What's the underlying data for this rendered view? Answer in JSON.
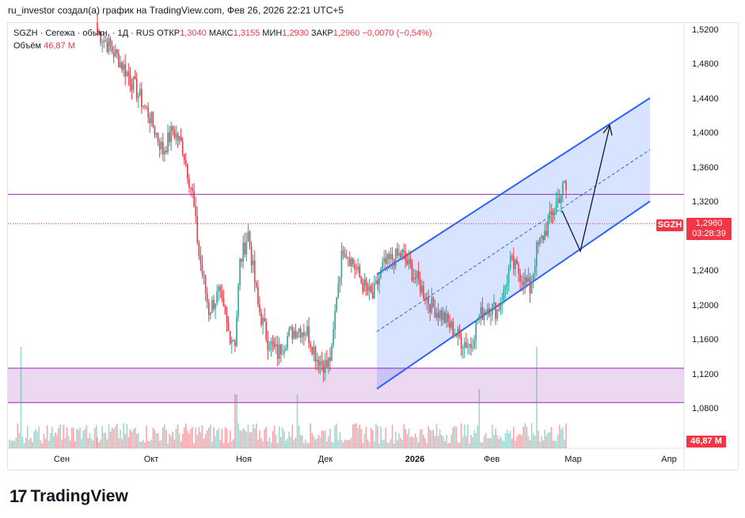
{
  "attribution": "ru_investor создал(а) график на TradingView.com, Фев 26, 2026 22:21 UTC+5",
  "legend": {
    "symbol_line": "SGZH · Сегежа · обыкн. · 1Д · RUS",
    "open_label": "ОТКР",
    "open_value": "1,3040",
    "high_label": "МАКС",
    "high_value": "1,3155",
    "low_label": "МИН",
    "low_value": "1,2930",
    "close_label": "ЗАКР",
    "close_value": "1,2960",
    "change": "−0,0070 (−0,54%)",
    "volume_label": "Объём",
    "volume_value": "46,87 M"
  },
  "price_tag": {
    "ticker": "SGZH",
    "price": "1,2960",
    "countdown": "03:28:39"
  },
  "volume_tag": "46,87 M",
  "brand": {
    "logo": "17",
    "name": "TradingView"
  },
  "y_axis": [
    "1,5200",
    "1,4800",
    "1,4400",
    "1,4000",
    "1,3600",
    "1,3200",
    "1,2800",
    "1,2400",
    "1,2000",
    "1,1600",
    "1,1200",
    "1,0800"
  ],
  "x_axis": [
    "Сен",
    "Окт",
    "Ноя",
    "Дек",
    "2026",
    "Фев",
    "Мар",
    "Апр"
  ],
  "colors": {
    "up": "#26a69a",
    "down": "#f23645",
    "channel": "#2962ff",
    "zone": "#e1bee7",
    "level": "#9c27b0"
  },
  "chart_data": {
    "type": "candlestick",
    "symbol": "SGZH",
    "timeframe": "1Д",
    "ylim": [
      1.065,
      1.535
    ],
    "last_close": 1.296,
    "resistance_level": 1.33,
    "support_zone": [
      1.088,
      1.128
    ],
    "channel": {
      "lower_start": 1.104,
      "lower_end": 1.322,
      "upper_start": 1.237,
      "upper_end": 1.442
    },
    "trend": [
      [
        1.52,
        0
      ],
      [
        1.49,
        12
      ],
      [
        1.465,
        20
      ],
      [
        1.42,
        32
      ],
      [
        1.38,
        40
      ],
      [
        1.405,
        46
      ],
      [
        1.385,
        52
      ],
      [
        1.33,
        58
      ],
      [
        1.26,
        62
      ],
      [
        1.195,
        68
      ],
      [
        1.215,
        74
      ],
      [
        1.17,
        80
      ],
      [
        1.16,
        84
      ],
      [
        1.25,
        87
      ],
      [
        1.285,
        92
      ],
      [
        1.2,
        98
      ],
      [
        1.16,
        104
      ],
      [
        1.145,
        110
      ],
      [
        1.165,
        116
      ],
      [
        1.175,
        122
      ],
      [
        1.17,
        128
      ],
      [
        1.14,
        134
      ],
      [
        1.13,
        140
      ],
      [
        1.145,
        143
      ],
      [
        1.215,
        146
      ],
      [
        1.27,
        150
      ],
      [
        1.25,
        156
      ],
      [
        1.225,
        162
      ],
      [
        1.21,
        168
      ],
      [
        1.245,
        174
      ],
      [
        1.255,
        180
      ],
      [
        1.26,
        186
      ],
      [
        1.24,
        192
      ],
      [
        1.22,
        198
      ],
      [
        1.2,
        204
      ],
      [
        1.19,
        210
      ],
      [
        1.175,
        216
      ],
      [
        1.16,
        222
      ],
      [
        1.155,
        228
      ],
      [
        1.185,
        232
      ],
      [
        1.2,
        238
      ],
      [
        1.195,
        244
      ],
      [
        1.215,
        248
      ],
      [
        1.25,
        252
      ],
      [
        1.238,
        258
      ],
      [
        1.22,
        264
      ],
      [
        1.265,
        268
      ],
      [
        1.29,
        274
      ],
      [
        1.32,
        280
      ],
      [
        1.34,
        285
      ],
      [
        1.31,
        290
      ],
      [
        1.3,
        296
      ],
      [
        1.296,
        300
      ]
    ]
  }
}
